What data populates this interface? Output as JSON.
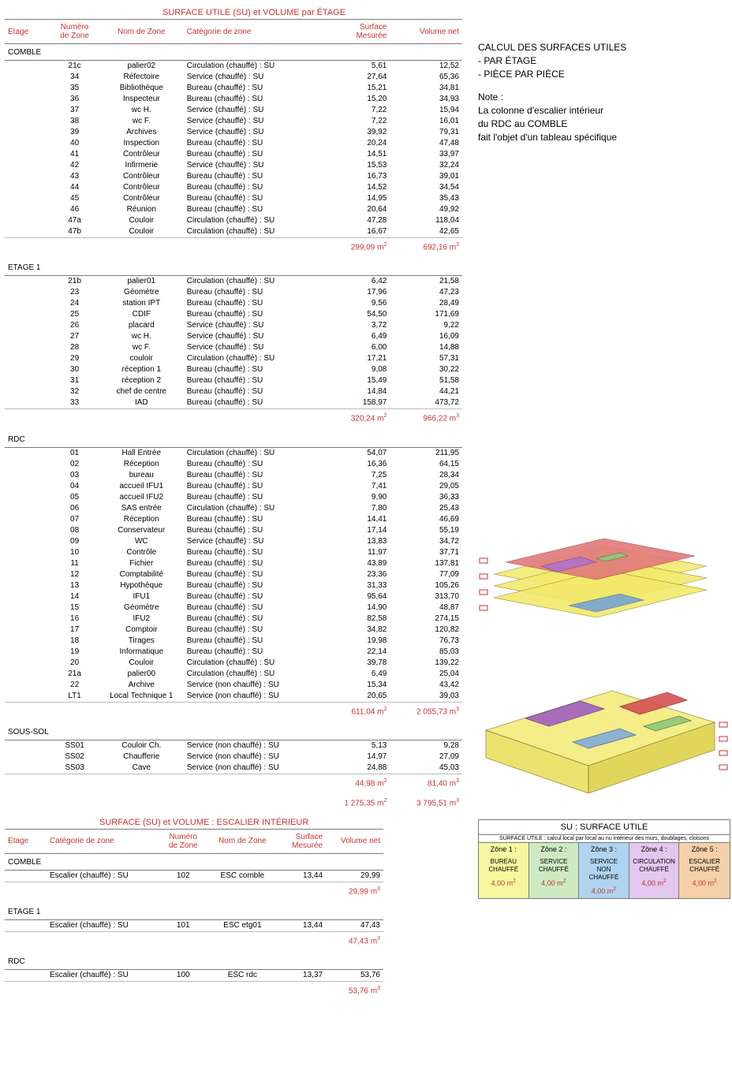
{
  "colors": {
    "accent": "#c83232",
    "border": "#7a7a7a",
    "text": "#000000",
    "bg": "#ffffff",
    "zone_colors": [
      "#f7f7a0",
      "#cdeac2",
      "#b0c8f0",
      "#d2b0e8",
      "#f5c099"
    ]
  },
  "table1": {
    "title": "SURFACE UTILE (SU) et VOLUME par ÉTAGE",
    "headers": {
      "etage": "Etage",
      "num": "Numéro\nde Zone",
      "nom": "Nom de Zone",
      "cat": "Catégorie de zone",
      "surf": "Surface\nMesurée",
      "vol": "Volume net"
    },
    "floors": [
      {
        "name": "COMBLE",
        "rows": [
          {
            "num": "21c",
            "nom": "palier02",
            "cat": "Circulation (chauffé) : SU",
            "surf": "5,61",
            "vol": "12,52"
          },
          {
            "num": "34",
            "nom": "Réfectoire",
            "cat": "Service (chauffé) : SU",
            "surf": "27,64",
            "vol": "65,36"
          },
          {
            "num": "35",
            "nom": "Bibliothèque",
            "cat": "Bureau (chauffé) : SU",
            "surf": "15,21",
            "vol": "34,81"
          },
          {
            "num": "36",
            "nom": "Inspecteur",
            "cat": "Bureau (chauffé) : SU",
            "surf": "15,20",
            "vol": "34,93"
          },
          {
            "num": "37",
            "nom": "wc H.",
            "cat": "Service (chauffé) : SU",
            "surf": "7,22",
            "vol": "15,94"
          },
          {
            "num": "38",
            "nom": "wc F.",
            "cat": "Service (chauffé) : SU",
            "surf": "7,22",
            "vol": "16,01"
          },
          {
            "num": "39",
            "nom": "Archives",
            "cat": "Service (chauffé) : SU",
            "surf": "39,92",
            "vol": "79,31"
          },
          {
            "num": "40",
            "nom": "Inspection",
            "cat": "Bureau (chauffé) : SU",
            "surf": "20,24",
            "vol": "47,48"
          },
          {
            "num": "41",
            "nom": "Contrôleur",
            "cat": "Bureau (chauffé) : SU",
            "surf": "14,51",
            "vol": "33,97"
          },
          {
            "num": "42",
            "nom": "Infirmerie",
            "cat": "Service (chauffé) : SU",
            "surf": "15,53",
            "vol": "32,24"
          },
          {
            "num": "43",
            "nom": "Contrôleur",
            "cat": "Bureau (chauffé) : SU",
            "surf": "16,73",
            "vol": "39,01"
          },
          {
            "num": "44",
            "nom": "Contrôleur",
            "cat": "Bureau (chauffé) : SU",
            "surf": "14,52",
            "vol": "34,54"
          },
          {
            "num": "45",
            "nom": "Contrôleur",
            "cat": "Bureau (chauffé) : SU",
            "surf": "14,95",
            "vol": "35,43"
          },
          {
            "num": "46",
            "nom": "Réunion",
            "cat": "Bureau (chauffé) : SU",
            "surf": "20,64",
            "vol": "49,92"
          },
          {
            "num": "47a",
            "nom": "Couloir",
            "cat": "Circulation (chauffé) : SU",
            "surf": "47,28",
            "vol": "118,04"
          },
          {
            "num": "47b",
            "nom": "Couloir",
            "cat": "Circulation (chauffé) : SU",
            "surf": "16,67",
            "vol": "42,65"
          }
        ],
        "sub_surf": "299,09 m²",
        "sub_vol": "692,16 m³"
      },
      {
        "name": "ETAGE 1",
        "rows": [
          {
            "num": "21b",
            "nom": "palier01",
            "cat": "Circulation (chauffé) : SU",
            "surf": "6,42",
            "vol": "21,58"
          },
          {
            "num": "23",
            "nom": "Géomètre",
            "cat": "Bureau (chauffé) : SU",
            "surf": "17,96",
            "vol": "47,23"
          },
          {
            "num": "24",
            "nom": "station IPT",
            "cat": "Bureau (chauffé) : SU",
            "surf": "9,56",
            "vol": "28,49"
          },
          {
            "num": "25",
            "nom": "CDIF",
            "cat": "Bureau (chauffé) : SU",
            "surf": "54,50",
            "vol": "171,69"
          },
          {
            "num": "26",
            "nom": "placard",
            "cat": "Service (chauffé) : SU",
            "surf": "3,72",
            "vol": "9,22"
          },
          {
            "num": "27",
            "nom": "wc H.",
            "cat": "Service (chauffé) : SU",
            "surf": "6,49",
            "vol": "16,09"
          },
          {
            "num": "28",
            "nom": "wc F.",
            "cat": "Service (chauffé) : SU",
            "surf": "6,00",
            "vol": "14,88"
          },
          {
            "num": "29",
            "nom": "couloir",
            "cat": "Circulation (chauffé) : SU",
            "surf": "17,21",
            "vol": "57,31"
          },
          {
            "num": "30",
            "nom": "réception 1",
            "cat": "Bureau (chauffé) : SU",
            "surf": "9,08",
            "vol": "30,22"
          },
          {
            "num": "31",
            "nom": "réception 2",
            "cat": "Bureau (chauffé) : SU",
            "surf": "15,49",
            "vol": "51,58"
          },
          {
            "num": "32",
            "nom": "chef de centre",
            "cat": "Bureau (chauffé) : SU",
            "surf": "14,84",
            "vol": "44,21"
          },
          {
            "num": "33",
            "nom": "IAD",
            "cat": "Bureau (chauffé) : SU",
            "surf": "158,97",
            "vol": "473,72"
          }
        ],
        "sub_surf": "320,24 m²",
        "sub_vol": "966,22 m³"
      },
      {
        "name": "RDC",
        "rows": [
          {
            "num": "01",
            "nom": "Hall Entrée",
            "cat": "Circulation (chauffé) : SU",
            "surf": "54,07",
            "vol": "211,95"
          },
          {
            "num": "02",
            "nom": "Réception",
            "cat": "Bureau (chauffé) : SU",
            "surf": "16,36",
            "vol": "64,15"
          },
          {
            "num": "03",
            "nom": "bureau",
            "cat": "Bureau (chauffé) : SU",
            "surf": "7,25",
            "vol": "28,34"
          },
          {
            "num": "04",
            "nom": "accueil IFU1",
            "cat": "Bureau (chauffé) : SU",
            "surf": "7,41",
            "vol": "29,05"
          },
          {
            "num": "05",
            "nom": "accueil IFU2",
            "cat": "Bureau (chauffé) : SU",
            "surf": "9,90",
            "vol": "36,33"
          },
          {
            "num": "06",
            "nom": "SAS entrée",
            "cat": "Circulation (chauffé) : SU",
            "surf": "7,80",
            "vol": "25,43"
          },
          {
            "num": "07",
            "nom": "Réception",
            "cat": "Bureau (chauffé) : SU",
            "surf": "14,41",
            "vol": "46,69"
          },
          {
            "num": "08",
            "nom": "Conservateur",
            "cat": "Bureau (chauffé) : SU",
            "surf": "17,14",
            "vol": "55,19"
          },
          {
            "num": "09",
            "nom": "WC",
            "cat": "Service (chauffé) : SU",
            "surf": "13,83",
            "vol": "34,72"
          },
          {
            "num": "10",
            "nom": "Contrôle",
            "cat": "Bureau (chauffé) : SU",
            "surf": "11,97",
            "vol": "37,71"
          },
          {
            "num": "11",
            "nom": "Fichier",
            "cat": "Bureau (chauffé) : SU",
            "surf": "43,89",
            "vol": "137,81"
          },
          {
            "num": "12",
            "nom": "Comptabilité",
            "cat": "Bureau (chauffé) : SU",
            "surf": "23,36",
            "vol": "77,09"
          },
          {
            "num": "13",
            "nom": "Hypothèque",
            "cat": "Bureau (chauffé) : SU",
            "surf": "31,33",
            "vol": "105,26"
          },
          {
            "num": "14",
            "nom": "IFU1",
            "cat": "Bureau (chauffé) : SU",
            "surf": "95,64",
            "vol": "313,70"
          },
          {
            "num": "15",
            "nom": "Géomètre",
            "cat": "Bureau (chauffé) : SU",
            "surf": "14,90",
            "vol": "48,87"
          },
          {
            "num": "16",
            "nom": "IFU2",
            "cat": "Bureau (chauffé) : SU",
            "surf": "82,58",
            "vol": "274,15"
          },
          {
            "num": "17",
            "nom": "Comptoir",
            "cat": "Bureau (chauffé) : SU",
            "surf": "34,82",
            "vol": "120,82"
          },
          {
            "num": "18",
            "nom": "Tirages",
            "cat": "Bureau (chauffé) : SU",
            "surf": "19,98",
            "vol": "76,73"
          },
          {
            "num": "19",
            "nom": "Informatique",
            "cat": "Bureau (chauffé) : SU",
            "surf": "22,14",
            "vol": "85,03"
          },
          {
            "num": "20",
            "nom": "Couloir",
            "cat": "Circulation (chauffé) : SU",
            "surf": "39,78",
            "vol": "139,22"
          },
          {
            "num": "21a",
            "nom": "palier00",
            "cat": "Circulation (chauffé) : SU",
            "surf": "6,49",
            "vol": "25,04"
          },
          {
            "num": "22",
            "nom": "Archive",
            "cat": "Service (non chauffé) : SU",
            "surf": "15,34",
            "vol": "43,42"
          },
          {
            "num": "LT1",
            "nom": "Local Technique 1",
            "cat": "Service (non chauffé) : SU",
            "surf": "20,65",
            "vol": "39,03"
          }
        ],
        "sub_surf": "611,04 m²",
        "sub_vol": "2  055,73 m³"
      },
      {
        "name": "SOUS-SOL",
        "rows": [
          {
            "num": "SS01",
            "nom": "Couloir Ch.",
            "cat": "Service (non chauffé) : SU",
            "surf": "5,13",
            "vol": "9,28"
          },
          {
            "num": "SS02",
            "nom": "Chaufferie",
            "cat": "Service (non chauffé) : SU",
            "surf": "14,97",
            "vol": "27,09"
          },
          {
            "num": "SS03",
            "nom": "Cave",
            "cat": "Service (non chauffé) : SU",
            "surf": "24,88",
            "vol": "45,03"
          }
        ],
        "sub_surf": "44,98 m²",
        "sub_vol": "81,40 m³"
      }
    ],
    "grand_surf": "1  275,35 m²",
    "grand_vol": "3  795,51 m³"
  },
  "side": {
    "line1": "CALCUL DES SURFACES UTILES",
    "line2": "- PAR ÉTAGE",
    "line3": "- PIÈCE PAR PIÈCE",
    "note_label": "Note :",
    "note1": "La colonne d'escalier intérieur",
    "note2": "du RDC au COMBLE",
    "note3": "fait l'objet d'un tableau spécifique"
  },
  "table2": {
    "title": "SURFACE (SU) et VOLUME : ESCALIER INTÉRIEUR",
    "headers": {
      "etage": "Etage",
      "cat": "Catégorie de zone",
      "num": "Numéro\nde Zone",
      "nom": "Nom de Zone",
      "surf": "Surface\nMesurée",
      "vol": "Volume net"
    },
    "floors": [
      {
        "name": "COMBLE",
        "rows": [
          {
            "cat": "Escalier (chauffé) : SU",
            "num": "102",
            "nom": "ESC comble",
            "surf": "13,44",
            "vol": "29,99"
          }
        ],
        "sub_vol": "29,99 m³"
      },
      {
        "name": "ETAGE 1",
        "rows": [
          {
            "cat": "Escalier (chauffé) : SU",
            "num": "101",
            "nom": "ESC etg01",
            "surf": "13,44",
            "vol": "47,43"
          }
        ],
        "sub_vol": "47,43 m³"
      },
      {
        "name": "RDC",
        "rows": [
          {
            "cat": "Escalier (chauffé) : SU",
            "num": "100",
            "nom": "ESC rdc",
            "surf": "13,37",
            "vol": "53,76"
          }
        ],
        "sub_vol": "53,76 m³"
      }
    ]
  },
  "legend": {
    "title": "SU : SURFACE UTILE",
    "subtitle": "SURFACE UTILE : calcul local par local au nu intérieur des murs, doublages, cloisons",
    "zones": [
      {
        "label": "Zône 1 :",
        "sub": "BUREAU\nCHAUFFÉ",
        "val": "4,00 m²",
        "bg": "#f7f7a0"
      },
      {
        "label": "Zône 2 :",
        "sub": "SERVICE\nCHAUFFÉ",
        "val": "4,00 m²",
        "bg": "#cdeac2"
      },
      {
        "label": "Zône 3 :",
        "sub": "SERVICE\nNON CHAUFFÉ",
        "val": "4,00 m²",
        "bg": "#b0d4f0"
      },
      {
        "label": "Zône 4 :",
        "sub": "CIRCULATION\nCHAUFFÉ",
        "val": "4,00 m²",
        "bg": "#e2c8f0"
      },
      {
        "label": "Zône 5 :",
        "sub": "ESCALIER\nCHAUFFÉ",
        "val": "4,00 m²",
        "bg": "#f5d0a8"
      }
    ]
  }
}
